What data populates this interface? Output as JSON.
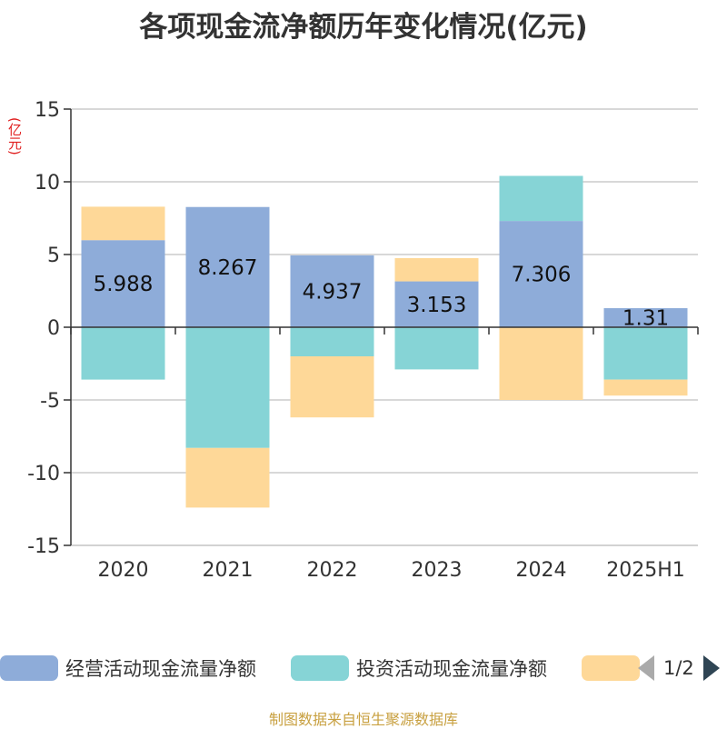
{
  "chart_data": {
    "type": "bar",
    "stacked": true,
    "title": "各项现金流净额历年变化情况(亿元)",
    "unit_label": "(亿元)",
    "categories": [
      "2020",
      "2021",
      "2022",
      "2023",
      "2024",
      "2025H1"
    ],
    "ylim": [
      -15,
      15
    ],
    "yticks": [
      15,
      10,
      5,
      0,
      -5,
      -10,
      -15
    ],
    "grid": true,
    "series": [
      {
        "name": "经营活动现金流量净额",
        "color": "#8eacd9",
        "values": [
          5.988,
          8.267,
          4.937,
          3.153,
          7.306,
          1.31
        ],
        "show_labels": true
      },
      {
        "name": "投资活动现金流量净额",
        "color": "#86d4d6",
        "values": [
          -3.6,
          -8.3,
          -2.0,
          -2.9,
          3.1,
          -3.6
        ],
        "show_labels": false
      },
      {
        "name": "",
        "color": "#fed898",
        "values": [
          2.3,
          -4.1,
          -4.2,
          1.6,
          -5.0,
          -1.1
        ],
        "show_labels": false
      }
    ],
    "legend": {
      "position": "bottom",
      "page": "1/2"
    }
  },
  "footer": "制图数据来自恒生聚源数据库"
}
